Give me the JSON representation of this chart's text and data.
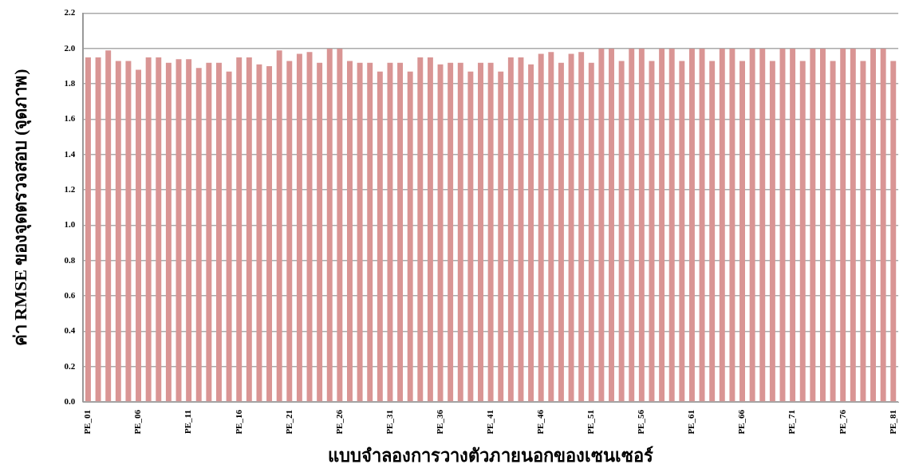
{
  "chart_data": {
    "type": "bar",
    "xlabel": "แบบจำลองการวางตัวภายนอกของเซนเซอร์",
    "ylabel": "ค่า RMSE ของจุดตรวจสอบ (จุดภาพ)",
    "categories": [
      "PE_01",
      null,
      null,
      null,
      null,
      "PE_06",
      null,
      null,
      null,
      null,
      "PE_11",
      null,
      null,
      null,
      null,
      "PE_16",
      null,
      null,
      null,
      null,
      "PE_21",
      null,
      null,
      null,
      null,
      "PE_26",
      null,
      null,
      null,
      null,
      "PE_31",
      null,
      null,
      null,
      null,
      "PE_36",
      null,
      null,
      null,
      null,
      "PE_41",
      null,
      null,
      null,
      null,
      "PE_46",
      null,
      null,
      null,
      null,
      "PE_51",
      null,
      null,
      null,
      null,
      "PE_56",
      null,
      null,
      null,
      null,
      "PE_61",
      null,
      null,
      null,
      null,
      "PE_66",
      null,
      null,
      null,
      null,
      "PE_71",
      null,
      null,
      null,
      null,
      "PE_76",
      null,
      null,
      null,
      null,
      "PE_81"
    ],
    "values": [
      1.95,
      1.95,
      1.99,
      1.93,
      1.93,
      1.88,
      1.95,
      1.95,
      1.92,
      1.94,
      1.94,
      1.89,
      1.92,
      1.92,
      1.87,
      1.95,
      1.95,
      1.91,
      1.9,
      1.99,
      1.93,
      1.97,
      1.98,
      1.92,
      2.0,
      2.0,
      1.93,
      1.92,
      1.92,
      1.87,
      1.92,
      1.92,
      1.87,
      1.95,
      1.95,
      1.91,
      1.92,
      1.92,
      1.87,
      1.92,
      1.92,
      1.87,
      1.95,
      1.95,
      1.91,
      1.97,
      1.98,
      1.92,
      1.97,
      1.98,
      1.92,
      2.0,
      2.0,
      1.93,
      2.0,
      2.0,
      1.93,
      2.0,
      2.0,
      1.93,
      2.0,
      2.0,
      1.93,
      2.0,
      2.0,
      1.93,
      2.0,
      2.0,
      1.93,
      2.0,
      2.0,
      1.93,
      2.0,
      2.0,
      1.93,
      2.0,
      2.0,
      1.93,
      2.0,
      2.0,
      1.93
    ],
    "color": "#d99594",
    "ylim": [
      0,
      2.2
    ],
    "yticks": [
      {
        "value": 0,
        "label": "0.0"
      },
      {
        "value": 0.2,
        "label": "0.2"
      },
      {
        "value": 0.4,
        "label": "0.4"
      },
      {
        "value": 0.6,
        "label": "0.6"
      },
      {
        "value": 0.8,
        "label": "0.8"
      },
      {
        "value": 1.0,
        "label": "1.0"
      },
      {
        "value": 1.2,
        "label": "1.2"
      },
      {
        "value": 1.4,
        "label": "1.4"
      },
      {
        "value": 1.6,
        "label": "1.6"
      },
      {
        "value": 1.8,
        "label": "1.8"
      },
      {
        "value": 2.0,
        "label": "2.0"
      },
      {
        "value": 2.2,
        "label": "2.2"
      }
    ],
    "grid": "y",
    "legend": false
  }
}
